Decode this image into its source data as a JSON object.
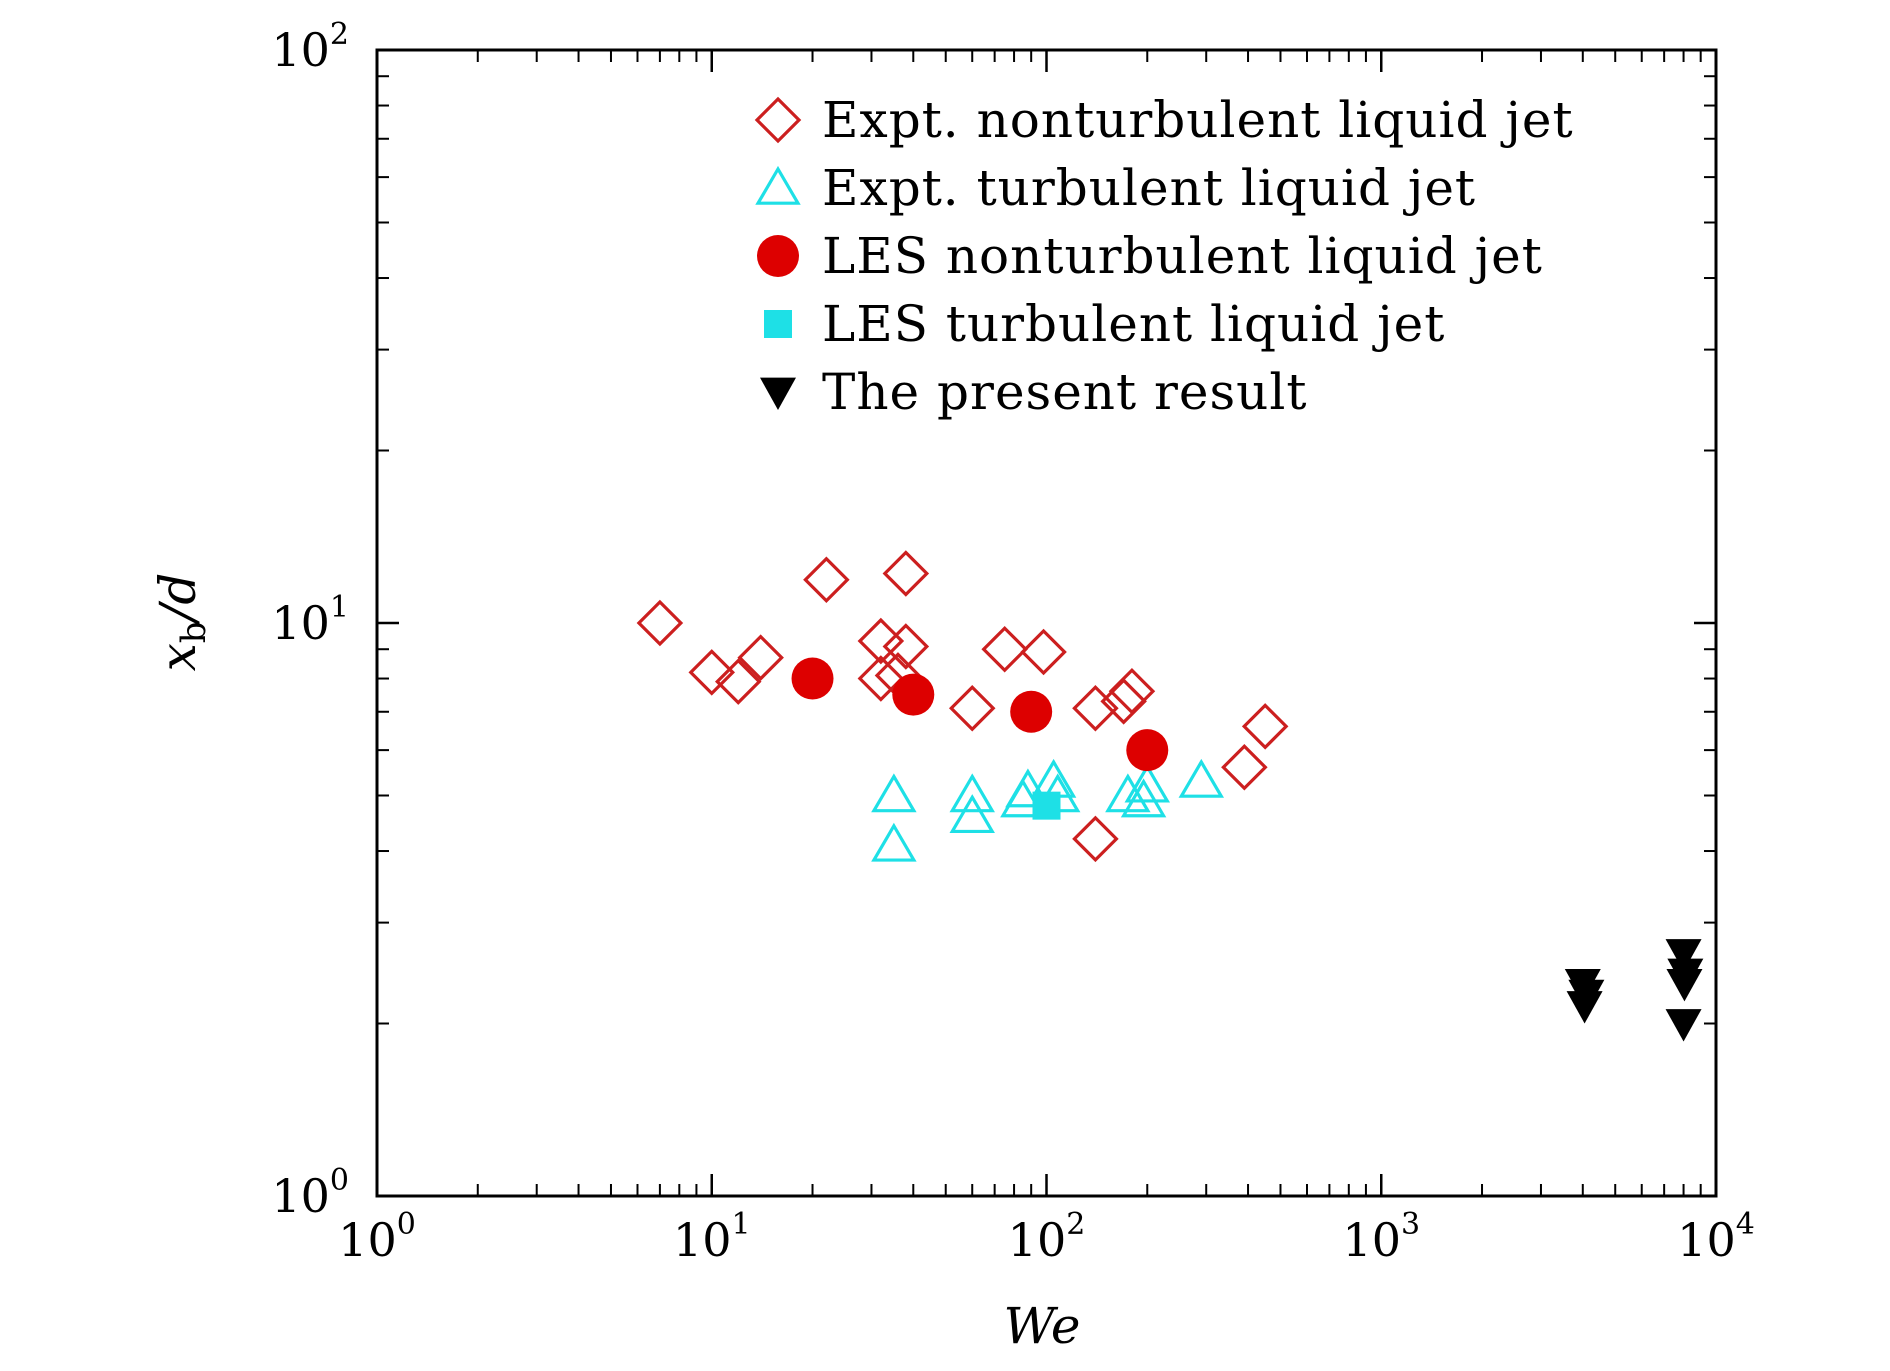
{
  "chart_data": {
    "type": "scatter",
    "xscale": "log",
    "yscale": "log",
    "xlim": [
      1,
      10000
    ],
    "ylim": [
      1,
      100
    ],
    "xlabel": "We",
    "ylabel": {
      "main": "x",
      "sub": "b",
      "rest": "/d"
    },
    "xticks": [
      {
        "base": "10",
        "exp": "0",
        "value": 1
      },
      {
        "base": "10",
        "exp": "1",
        "value": 10
      },
      {
        "base": "10",
        "exp": "2",
        "value": 100
      },
      {
        "base": "10",
        "exp": "3",
        "value": 1000
      },
      {
        "base": "10",
        "exp": "4",
        "value": 10000
      }
    ],
    "yticks": [
      {
        "base": "10",
        "exp": "0",
        "value": 1
      },
      {
        "base": "10",
        "exp": "1",
        "value": 10
      },
      {
        "base": "10",
        "exp": "2",
        "value": 100
      }
    ],
    "legend_position": "top-right",
    "series": [
      {
        "name": "Expt. nonturbulent liquid jet",
        "marker": "diamond-open",
        "color": "#cc1f1f",
        "points": [
          [
            7,
            10.0
          ],
          [
            10,
            8.2
          ],
          [
            12,
            7.9
          ],
          [
            14,
            8.7
          ],
          [
            22,
            11.9
          ],
          [
            38,
            12.2
          ],
          [
            32,
            9.3
          ],
          [
            32,
            8.0
          ],
          [
            36,
            8.1
          ],
          [
            38,
            9.1
          ],
          [
            60,
            7.1
          ],
          [
            75,
            9.0
          ],
          [
            98,
            8.9
          ],
          [
            140,
            7.1
          ],
          [
            170,
            7.3
          ],
          [
            180,
            7.6
          ],
          [
            140,
            4.2
          ],
          [
            390,
            5.6
          ],
          [
            450,
            6.6
          ]
        ]
      },
      {
        "name": "Expt. turbulent liquid jet",
        "marker": "triangle-up-open",
        "color": "#1ee0e6",
        "points": [
          [
            35,
            5.0
          ],
          [
            35,
            4.1
          ],
          [
            60,
            5.0
          ],
          [
            60,
            4.6
          ],
          [
            85,
            4.9
          ],
          [
            88,
            5.1
          ],
          [
            105,
            5.3
          ],
          [
            108,
            5.0
          ],
          [
            175,
            5.0
          ],
          [
            195,
            4.9
          ],
          [
            200,
            5.2
          ],
          [
            290,
            5.3
          ]
        ]
      },
      {
        "name": "LES nonturbulent liquid jet",
        "marker": "circle-filled",
        "color": "#dd0000",
        "points": [
          [
            20,
            8.0
          ],
          [
            40,
            7.5
          ],
          [
            90,
            7.0
          ],
          [
            200,
            6.0
          ]
        ]
      },
      {
        "name": "LES turbulent liquid jet",
        "marker": "square-filled",
        "color": "#1ee0e6",
        "points": [
          [
            100,
            4.8
          ]
        ]
      },
      {
        "name": "The present result",
        "marker": "triangle-down-filled",
        "color": "#000000",
        "points": [
          [
            4000,
            2.35
          ],
          [
            4100,
            2.25
          ],
          [
            4050,
            2.15
          ],
          [
            8000,
            2.65
          ],
          [
            8100,
            2.45
          ],
          [
            8050,
            2.35
          ],
          [
            8000,
            2.0
          ]
        ]
      }
    ]
  }
}
